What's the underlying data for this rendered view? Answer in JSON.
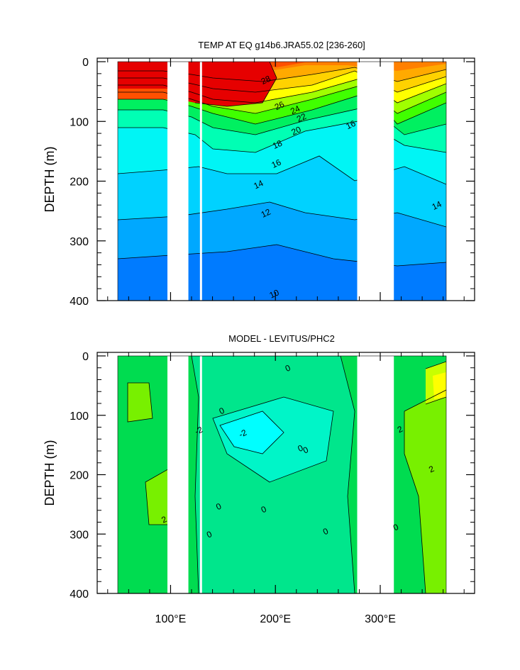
{
  "chart_data": [
    {
      "type": "heatmap",
      "title": "TEMP AT EQ g14b6.JRA55.02 [236-260]",
      "ylabel": "DEPTH (m)",
      "xlim": [
        30,
        390
      ],
      "ylim": [
        400,
        0
      ],
      "x_ticks": [
        100,
        200,
        300
      ],
      "x_tick_labels": [
        "100°E",
        "200°E",
        "300°E"
      ],
      "y_ticks": [
        0,
        100,
        200,
        300,
        400
      ],
      "y_tick_labels": [
        "0",
        "100",
        "200",
        "300",
        "400"
      ],
      "data_x_range": [
        45,
        370
      ],
      "land_gaps_lon": [
        [
          97,
          117
        ],
        [
          128,
          130
        ],
        [
          278,
          313
        ]
      ],
      "contour_labels": [
        {
          "text": "28",
          "lon": 192,
          "depth": 35
        },
        {
          "text": "26",
          "lon": 205,
          "depth": 78
        },
        {
          "text": "24",
          "lon": 220,
          "depth": 85
        },
        {
          "text": "22",
          "lon": 226,
          "depth": 98
        },
        {
          "text": "20",
          "lon": 221,
          "depth": 120
        },
        {
          "text": "18",
          "lon": 203,
          "depth": 143
        },
        {
          "text": "16",
          "lon": 202,
          "depth": 175
        },
        {
          "text": "14",
          "lon": 185,
          "depth": 210
        },
        {
          "text": "12",
          "lon": 192,
          "depth": 258
        },
        {
          "text": "10",
          "lon": 200,
          "depth": 393
        },
        {
          "text": "16",
          "lon": 273,
          "depth": 110
        },
        {
          "text": "14",
          "lon": 355,
          "depth": 245
        }
      ],
      "color_scale": {
        "min": 8,
        "max": 30,
        "colors": [
          "#0000c8",
          "#0028f0",
          "#0050ff",
          "#007bff",
          "#00a8ff",
          "#00d2ff",
          "#00f5f5",
          "#00ffb4",
          "#00f060",
          "#40ff00",
          "#a0ff00",
          "#ffff00",
          "#ffd200",
          "#ffaa00",
          "#ff8000",
          "#ff5000",
          "#e60000",
          "#c80000"
        ]
      }
    },
    {
      "type": "heatmap",
      "title": "MODEL - LEVITUS/PHC2",
      "ylabel": "DEPTH (m)",
      "xlim": [
        30,
        390
      ],
      "ylim": [
        400,
        0
      ],
      "x_ticks": [
        100,
        200,
        300
      ],
      "x_tick_labels": [
        "100°E",
        "200°E",
        "300°E"
      ],
      "y_ticks": [
        0,
        100,
        200,
        300,
        400
      ],
      "y_tick_labels": [
        "0",
        "100",
        "200",
        "300",
        "400"
      ],
      "data_x_range": [
        45,
        370
      ],
      "land_gaps_lon": [
        [
          97,
          117
        ],
        [
          128,
          130
        ],
        [
          278,
          313
        ]
      ],
      "contour_labels": [
        {
          "text": "0",
          "lon": 213,
          "depth": 25
        },
        {
          "text": "0",
          "lon": 150,
          "depth": 97
        },
        {
          "text": "-2",
          "lon": 170,
          "depth": 135
        },
        {
          "text": "-2",
          "lon": 128,
          "depth": 130
        },
        {
          "text": "0",
          "lon": 225,
          "depth": 160
        },
        {
          "text": "0",
          "lon": 230,
          "depth": 163
        },
        {
          "text": "0",
          "lon": 147,
          "depth": 258
        },
        {
          "text": "0",
          "lon": 190,
          "depth": 263
        },
        {
          "text": "0",
          "lon": 138,
          "depth": 305
        },
        {
          "text": "0",
          "lon": 249,
          "depth": 300
        },
        {
          "text": "0",
          "lon": 316,
          "depth": 293
        },
        {
          "text": "2",
          "lon": 95,
          "depth": 280
        },
        {
          "text": "2",
          "lon": 320,
          "depth": 128
        },
        {
          "text": "2",
          "lon": 350,
          "depth": 195
        }
      ],
      "color_scale": {
        "min": -4,
        "max": 4,
        "colors": [
          "#00ffff",
          "#00f5c8",
          "#00e68c",
          "#00dc50",
          "#78f000",
          "#c8ff00",
          "#ffff00"
        ]
      }
    }
  ]
}
